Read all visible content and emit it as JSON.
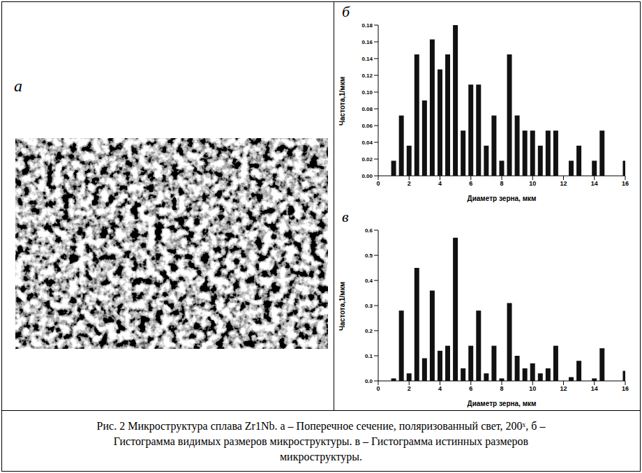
{
  "caption": "Рис. 2 Микроструктура сплава Zr1Nb. а – Поперечное сечение, поляризованный свет, 200ˣ, б – Гистограмма видимых размеров микроструктуры. в – Гистограмма истинных размеров микроструктуры.",
  "image_panel_label": "а",
  "chart_data": [
    {
      "type": "bar",
      "panel_label": "б",
      "x_label": "Диаметр зерна, мкм",
      "y_label": "Частота,1/мкм",
      "color": "#111111",
      "x": [
        1,
        1.5,
        2,
        2.5,
        3,
        3.5,
        4,
        4.5,
        5,
        5.5,
        6,
        6.5,
        7,
        7.5,
        8,
        8.5,
        9,
        9.5,
        10,
        10.5,
        11,
        11.5,
        12,
        12.5,
        13,
        13.5,
        14,
        14.5,
        15,
        15.5,
        16
      ],
      "values": [
        0.018,
        0.072,
        0.036,
        0.145,
        0.09,
        0.163,
        0.127,
        0.145,
        0.18,
        0.054,
        0.109,
        0.109,
        0.036,
        0.072,
        0.018,
        0.145,
        0.072,
        0.054,
        0.054,
        0.036,
        0.054,
        0.054,
        0,
        0.018,
        0.036,
        0,
        0.018,
        0.054,
        0,
        0,
        0.018
      ],
      "xlim": [
        0,
        16
      ],
      "xticks": [
        0,
        2,
        4,
        6,
        8,
        10,
        12,
        14,
        16
      ],
      "ylim": [
        0,
        0.18
      ],
      "yticks": [
        {
          "value": 0,
          "label": "0.00"
        },
        0.02,
        0.04,
        0.06,
        0.08,
        {
          "value": 0.1,
          "label": "0.10"
        },
        0.12,
        0.14,
        0.16,
        0.18
      ]
    },
    {
      "type": "bar",
      "panel_label": "в",
      "x_label": "Диаметр зерна, мкм",
      "y_label": "Частота,1/мкм",
      "color": "#111111",
      "x": [
        1,
        1.5,
        2,
        2.5,
        3,
        3.5,
        4,
        4.5,
        5,
        5.5,
        6,
        6.5,
        7,
        7.5,
        8,
        8.5,
        9,
        9.5,
        10,
        10.5,
        11,
        11.5,
        12,
        12.5,
        13,
        13.5,
        14,
        14.5,
        15,
        15.5,
        16
      ],
      "values": [
        0.01,
        0.28,
        0.03,
        0.45,
        0.09,
        0.36,
        0.12,
        0.14,
        0.57,
        0.05,
        0.14,
        0.28,
        0.03,
        0.14,
        0.01,
        0.31,
        0.1,
        0.05,
        0.07,
        0.03,
        0.05,
        0.14,
        0,
        0.015,
        0.08,
        0,
        0.01,
        0.13,
        0,
        0,
        0.04
      ],
      "xlim": [
        0,
        16
      ],
      "xticks": [
        0,
        2,
        4,
        6,
        8,
        10,
        12,
        14,
        16
      ],
      "ylim": [
        0,
        0.6
      ],
      "yticks": [
        {
          "value": 0,
          "label": "0.0"
        },
        0.1,
        0.2,
        0.3,
        0.4,
        0.5,
        0.6
      ]
    }
  ]
}
